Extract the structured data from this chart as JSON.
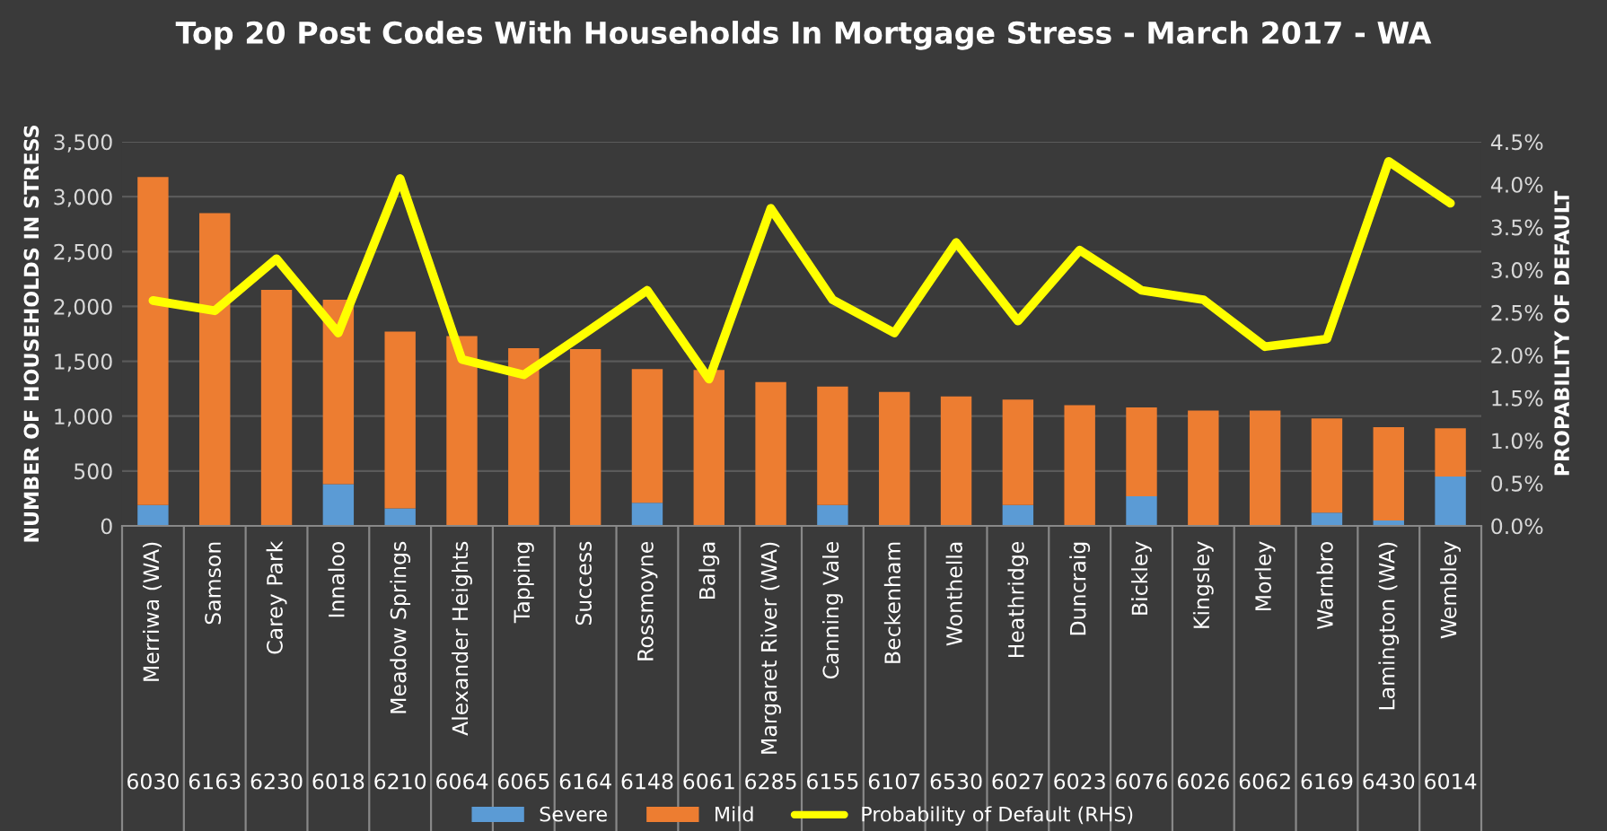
{
  "chart_data": {
    "type": "bar",
    "stacked": true,
    "title": "Top 20 Post Codes With Households In Mortgage Stress - March 2017 - WA",
    "ylabel": "NUMBER OF HOUSEHOLDS IN STRESS",
    "y2label": "PROPABILITY OF DEFAULT",
    "categories": [
      "Merriwa (WA)",
      "Samson",
      "Carey Park",
      "Innaloo",
      "Meadow Springs",
      "Alexander Heights",
      "Tapping",
      "Success",
      "Rossmoyne",
      "Balga",
      "Margaret River (WA)",
      "Canning Vale",
      "Beckenham",
      "Wonthella",
      "Heathridge",
      "Duncraig",
      "Bickley",
      "Kingsley",
      "Morley",
      "Warnbro",
      "Lamington (WA)",
      "Wembley"
    ],
    "series": [
      {
        "name": "Severe",
        "color": "#5b9bd5",
        "values": [
          190,
          0,
          0,
          380,
          160,
          0,
          0,
          0,
          210,
          0,
          0,
          190,
          0,
          0,
          190,
          0,
          270,
          0,
          0,
          120,
          50,
          450
        ]
      },
      {
        "name": "Mild",
        "color": "#ed7d31",
        "values": [
          2990,
          2850,
          2150,
          1680,
          1610,
          1730,
          1620,
          1610,
          1220,
          1420,
          1310,
          1080,
          1220,
          1180,
          960,
          1100,
          810,
          1050,
          1050,
          860,
          850,
          440
        ]
      },
      {
        "name": "Probability of Default (RHS)",
        "type": "line",
        "axis": "y2",
        "color": "#ffff00",
        "values": [
          2.64,
          2.52,
          3.13,
          2.26,
          4.07,
          1.95,
          1.77,
          2.26,
          2.76,
          1.72,
          3.72,
          2.65,
          2.26,
          3.32,
          2.4,
          3.23,
          2.76,
          2.65,
          2.1,
          2.19,
          4.27,
          3.78
        ]
      }
    ],
    "ylim": [
      0,
      3500
    ],
    "yticks": [
      0,
      {
        "value": 500,
        "label": "500"
      },
      {
        "value": 1000,
        "label": "1,000"
      },
      {
        "value": 1500,
        "label": "1,500"
      },
      {
        "value": 2000,
        "label": "2,000"
      },
      {
        "value": 2500,
        "label": "2,500"
      },
      {
        "value": 3000,
        "label": "3,000"
      },
      {
        "value": 3500,
        "label": "3,500"
      }
    ],
    "y2lim": [
      0,
      4.5
    ],
    "y2ticks": [
      {
        "value": 0,
        "label": "0.0%"
      },
      {
        "value": 0.5,
        "label": "0.5%"
      },
      {
        "value": 1,
        "label": "1.0%"
      },
      {
        "value": 1.5,
        "label": "1.5%"
      },
      {
        "value": 2,
        "label": "2.0%"
      },
      {
        "value": 2.5,
        "label": "2.5%"
      },
      {
        "value": 3,
        "label": "3.0%"
      },
      {
        "value": 3.5,
        "label": "3.5%"
      },
      {
        "value": 4,
        "label": "4.0%"
      },
      {
        "value": 4.5,
        "label": "4.5%"
      }
    ],
    "annotations": [
      "6030",
      "6163",
      "6230",
      "6018",
      "6210",
      "6064",
      "6065",
      "6164",
      "6148",
      "6061",
      "6285",
      "6155",
      "6107",
      "6530",
      "6027",
      "6023",
      "6076",
      "6026",
      "6062",
      "6169",
      "6430",
      "6014"
    ],
    "grid": "y",
    "legend": "bottom",
    "line_style": "solid",
    "marker": "none"
  }
}
